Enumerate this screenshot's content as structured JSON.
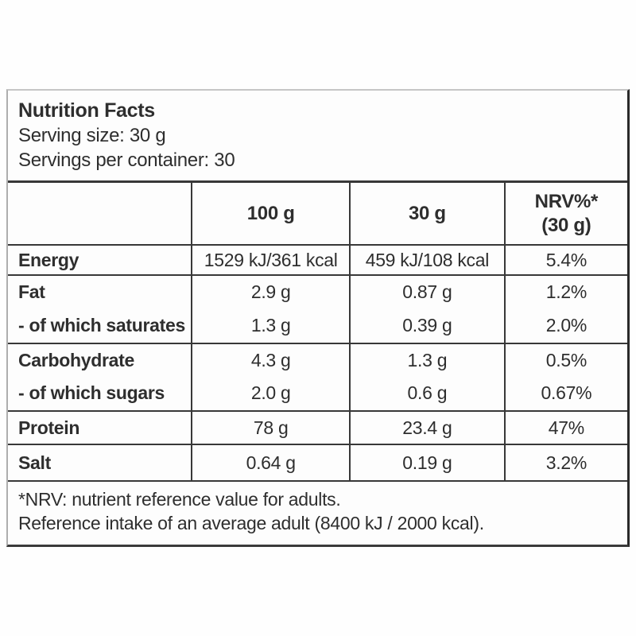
{
  "panel": {
    "intro": {
      "title": "Nutrition Facts",
      "serving_size": "Serving size: 30 g",
      "servings_per_container": "Servings per container: 30"
    },
    "table": {
      "col_headers": {
        "col2": "100 g",
        "col3": "30 g",
        "col4_line1": "NRV%*",
        "col4_line2": "(30 g)"
      },
      "rows": [
        {
          "label": "Energy",
          "per_100g": "1529 kJ/361 kcal",
          "per_30g": "459 kJ/108 kcal",
          "nrv": "5.4%"
        },
        {
          "label": "Fat",
          "per_100g": "2.9 g",
          "per_30g": "0.87 g",
          "nrv": "1.2%"
        },
        {
          "label": "- of which saturates",
          "per_100g": "1.3 g",
          "per_30g": "0.39 g",
          "nrv": "2.0%"
        },
        {
          "label": "Carbohydrate",
          "per_100g": "4.3 g",
          "per_30g": "1.3 g",
          "nrv": "0.5%"
        },
        {
          "label": "- of which sugars",
          "per_100g": "2.0 g",
          "per_30g": "0.6 g",
          "nrv": "0.67%"
        },
        {
          "label": "Protein",
          "per_100g": "78 g",
          "per_30g": "23.4 g",
          "nrv": "47%"
        },
        {
          "label": "Salt",
          "per_100g": "0.64 g",
          "per_30g": "0.19 g",
          "nrv": "3.2%"
        }
      ]
    },
    "footnotes": {
      "line1": "*NRV: nutrient reference value for adults.",
      "line2": "Reference intake of an average adult (8400 kJ / 2000 kcal)."
    }
  }
}
